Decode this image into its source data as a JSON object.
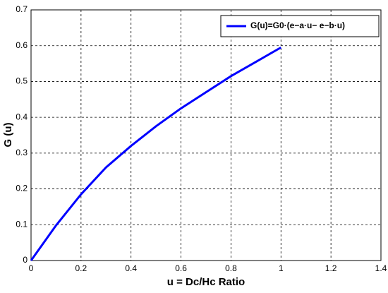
{
  "chart_data": {
    "type": "line",
    "x_label": "u = Dc/Hc Ratio",
    "y_label": "G (u)",
    "x": [
      0,
      0.1,
      0.2,
      0.3,
      0.4,
      0.5,
      0.6,
      0.7,
      0.8,
      0.9,
      1.0
    ],
    "series": [
      {
        "name": "G(u)=G0·(e−a·u− e−b·u)",
        "color": "#0000ff",
        "values": [
          0,
          0.098,
          0.185,
          0.26,
          0.32,
          0.375,
          0.425,
          0.47,
          0.515,
          0.555,
          0.595
        ]
      }
    ],
    "xlim": [
      0,
      1.4
    ],
    "xticks": [
      0,
      0.2,
      0.4,
      0.6,
      0.8,
      1,
      1.2,
      1.4
    ],
    "ylim": [
      0,
      0.7
    ],
    "yticks": [
      0,
      0.1,
      0.2,
      0.3,
      0.4,
      0.5,
      0.6,
      0.7
    ],
    "grid": true,
    "legend": "top-right"
  }
}
